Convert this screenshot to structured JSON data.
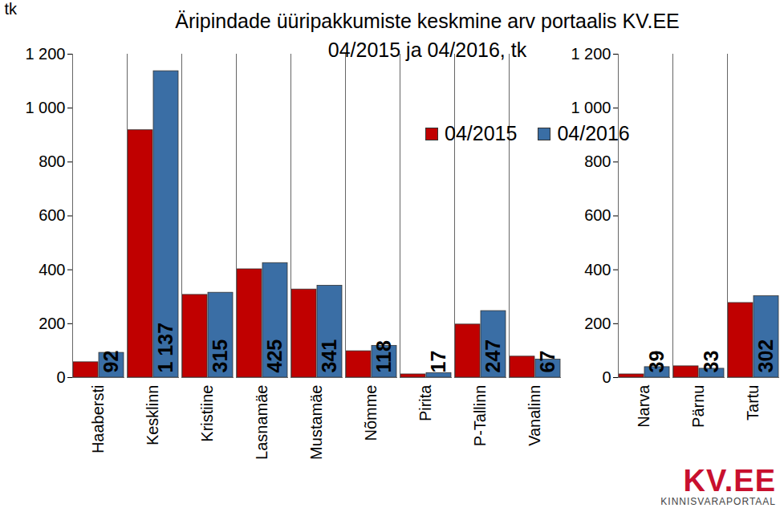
{
  "chart_data": {
    "type": "bar",
    "title": "Äripindade üüripakkumiste keskmine arv portaalis KV.EE",
    "subtitle": "04/2015 ja 04/2016, tk",
    "y_label": "tk",
    "categories": [
      "Haabersti",
      "Kesklinn",
      "Kristiine",
      "Lasnamäe",
      "Mustamäe",
      "Nõmme",
      "Pirita",
      "P-Tallinn",
      "Vanalinn",
      null,
      "Narva",
      "Pärnu",
      "Tartu"
    ],
    "series": [
      {
        "name": "04/2015",
        "color": "#c00000",
        "data_labels": false,
        "values": [
          57,
          918,
          307,
          402,
          327,
          98,
          12,
          197,
          78,
          null,
          12,
          42,
          277
        ]
      },
      {
        "name": "04/2016",
        "color": "#3a6ea5",
        "data_labels": true,
        "values": [
          92,
          1137,
          315,
          425,
          341,
          118,
          17,
          247,
          67,
          null,
          39,
          33,
          302
        ],
        "value_labels": [
          "92",
          "1 137",
          "315",
          "425",
          "341",
          "118",
          "17",
          "247",
          "67",
          null,
          "39",
          "33",
          "302"
        ]
      }
    ],
    "ylim": [
      0,
      1200
    ],
    "yticks": [
      0,
      200,
      400,
      600,
      800,
      {
        "value": 1000,
        "label": "1 000"
      },
      {
        "value": 1200,
        "label": "1 200"
      }
    ],
    "grid": false,
    "legend": "top-right",
    "logo": {
      "text": "KV.EE",
      "subtext": "KINNISVARAPORTAAL"
    }
  }
}
